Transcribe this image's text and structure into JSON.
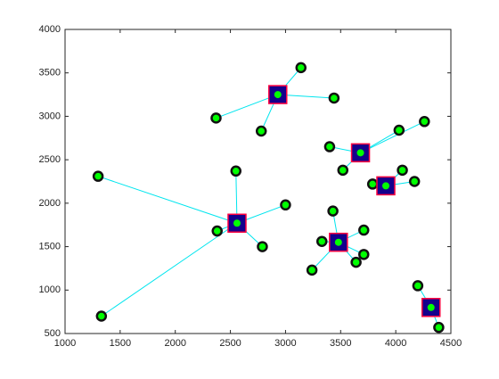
{
  "chart_data": {
    "type": "scatter",
    "xlim": [
      1000,
      4500
    ],
    "ylim": [
      500,
      4000
    ],
    "xticks": [
      1000,
      1500,
      2000,
      2500,
      3000,
      3500,
      4000,
      4500
    ],
    "yticks": [
      500,
      1000,
      1500,
      2000,
      2500,
      3000,
      3500,
      4000
    ],
    "point_color": "#00ff00",
    "center_color": "#14008c",
    "center_edge_color": "#ff0040",
    "line_color": "#00e5ee",
    "clusters": [
      {
        "center": {
          "x": 2930,
          "y": 3250
        },
        "x": [
          3140,
          3440,
          2370,
          2780
        ],
        "y": [
          3560,
          3210,
          2980,
          2830
        ]
      },
      {
        "center": {
          "x": 3680,
          "y": 2580
        },
        "x": [
          3400,
          3520,
          4030,
          4260
        ],
        "y": [
          2650,
          2380,
          2840,
          2940
        ]
      },
      {
        "center": {
          "x": 3910,
          "y": 2200
        },
        "x": [
          3790,
          4060,
          4170
        ],
        "y": [
          2220,
          2380,
          2250
        ]
      },
      {
        "center": {
          "x": 2560,
          "y": 1770
        },
        "x": [
          1300,
          1330,
          2380,
          2550,
          2790,
          3000
        ],
        "y": [
          2310,
          700,
          1680,
          2370,
          1500,
          1980
        ]
      },
      {
        "center": {
          "x": 3480,
          "y": 1550
        },
        "x": [
          3430,
          3330,
          3240,
          3710,
          3710,
          3640
        ],
        "y": [
          1910,
          1560,
          1230,
          1690,
          1410,
          1320
        ]
      },
      {
        "center": {
          "x": 4320,
          "y": 800
        },
        "x": [
          4200,
          4390
        ],
        "y": [
          1050,
          570
        ]
      }
    ]
  }
}
